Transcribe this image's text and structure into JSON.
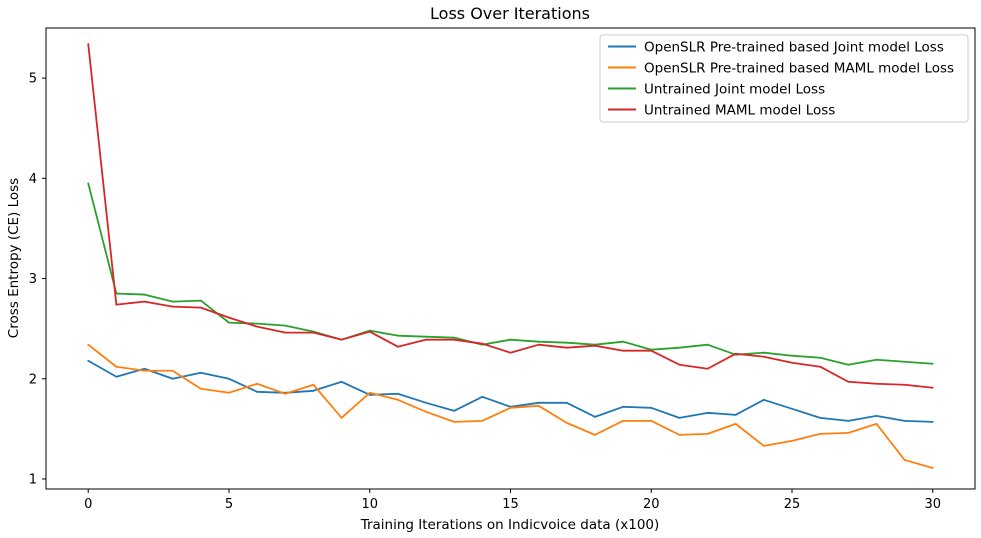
{
  "chart_data": {
    "type": "line",
    "title": "Loss Over Iterations",
    "xlabel": "Training Iterations on Indicvoice data (x100)",
    "ylabel": "Cross Entropy (CE) Loss",
    "xlim": [
      -1.5,
      31.5
    ],
    "ylim": [
      0.9,
      5.5
    ],
    "xticks": [
      0,
      5,
      10,
      15,
      20,
      25,
      30
    ],
    "yticks": [
      1,
      2,
      3,
      4,
      5
    ],
    "grid": false,
    "legend_position": "top-right",
    "x": [
      0,
      1,
      2,
      3,
      4,
      5,
      6,
      7,
      8,
      9,
      10,
      11,
      12,
      13,
      14,
      15,
      16,
      17,
      18,
      19,
      20,
      21,
      22,
      23,
      24,
      25,
      26,
      27,
      28,
      29,
      30
    ],
    "series": [
      {
        "name": "OpenSLR Pre-trained based Joint model Loss",
        "color": "#1f77b4",
        "values": [
          2.18,
          2.02,
          2.1,
          2.0,
          2.06,
          2.0,
          1.87,
          1.86,
          1.88,
          1.97,
          1.84,
          1.85,
          1.76,
          1.68,
          1.82,
          1.72,
          1.76,
          1.76,
          1.62,
          1.72,
          1.71,
          1.61,
          1.66,
          1.64,
          1.79,
          1.7,
          1.61,
          1.58,
          1.63,
          1.58,
          1.57
        ]
      },
      {
        "name": "OpenSLR Pre-trained based MAML model Loss",
        "color": "#ff7f0e",
        "values": [
          2.34,
          2.12,
          2.08,
          2.08,
          1.9,
          1.86,
          1.95,
          1.85,
          1.94,
          1.61,
          1.86,
          1.79,
          1.67,
          1.57,
          1.58,
          1.71,
          1.73,
          1.56,
          1.44,
          1.58,
          1.58,
          1.44,
          1.45,
          1.55,
          1.33,
          1.38,
          1.45,
          1.46,
          1.55,
          1.19,
          1.11
        ]
      },
      {
        "name": "Untrained Joint model Loss",
        "color": "#2ca02c",
        "values": [
          3.95,
          2.85,
          2.84,
          2.77,
          2.78,
          2.56,
          2.55,
          2.53,
          2.47,
          2.39,
          2.48,
          2.43,
          2.42,
          2.41,
          2.34,
          2.39,
          2.37,
          2.36,
          2.34,
          2.37,
          2.29,
          2.31,
          2.34,
          2.24,
          2.26,
          2.23,
          2.21,
          2.14,
          2.19,
          2.17,
          2.15
        ]
      },
      {
        "name": "Untrained MAML model Loss",
        "color": "#d62728",
        "values": [
          5.34,
          2.74,
          2.77,
          2.72,
          2.71,
          2.61,
          2.52,
          2.46,
          2.46,
          2.39,
          2.47,
          2.32,
          2.39,
          2.39,
          2.35,
          2.26,
          2.34,
          2.31,
          2.33,
          2.28,
          2.28,
          2.14,
          2.1,
          2.25,
          2.22,
          2.16,
          2.12,
          1.97,
          1.95,
          1.94,
          1.91
        ]
      }
    ]
  }
}
